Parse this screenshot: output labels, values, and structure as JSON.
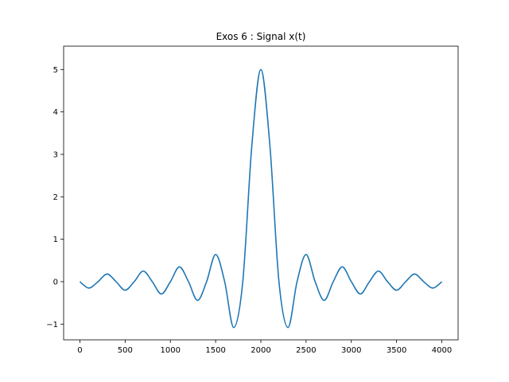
{
  "chart_data": {
    "type": "line",
    "title": "Exos 6 : Signal x(t)",
    "xlabel": "",
    "ylabel": "",
    "xlim": [
      -180,
      4180
    ],
    "ylim": [
      -1.37,
      5.55
    ],
    "xticks": [
      0,
      500,
      1000,
      1500,
      2000,
      2500,
      3000,
      3500,
      4000
    ],
    "xtick_labels": [
      "0",
      "500",
      "1000",
      "1500",
      "2000",
      "2500",
      "3000",
      "3500",
      "4000"
    ],
    "yticks": [
      -1,
      0,
      1,
      2,
      3,
      4,
      5
    ],
    "ytick_labels": [
      "−1",
      "0",
      "1",
      "2",
      "3",
      "4",
      "5"
    ],
    "grid": false,
    "series": [
      {
        "color": "#1f77b4",
        "x": [
          0,
          100,
          200,
          300,
          400,
          500,
          600,
          700,
          800,
          900,
          1000,
          1100,
          1200,
          1300,
          1400,
          1500,
          1600,
          1700,
          1800,
          1900,
          2000,
          2100,
          2200,
          2300,
          2400,
          2500,
          2600,
          2700,
          2800,
          2900,
          3000,
          3100,
          3200,
          3300,
          3400,
          3500,
          3600,
          3700,
          3800,
          3900,
          4000
        ],
        "y": [
          0,
          -0.15,
          0.0,
          0.18,
          0.0,
          -0.2,
          0.0,
          0.25,
          0.0,
          -0.29,
          0.0,
          0.35,
          0.0,
          -0.44,
          0.0,
          0.64,
          0.0,
          -1.08,
          0.0,
          3.2,
          5.0,
          3.2,
          0.0,
          -1.08,
          0.0,
          0.64,
          0.0,
          -0.44,
          0.0,
          0.35,
          0.0,
          -0.29,
          0.0,
          0.25,
          0.0,
          -0.2,
          0.0,
          0.18,
          0.0,
          -0.15,
          0.0
        ]
      }
    ]
  }
}
